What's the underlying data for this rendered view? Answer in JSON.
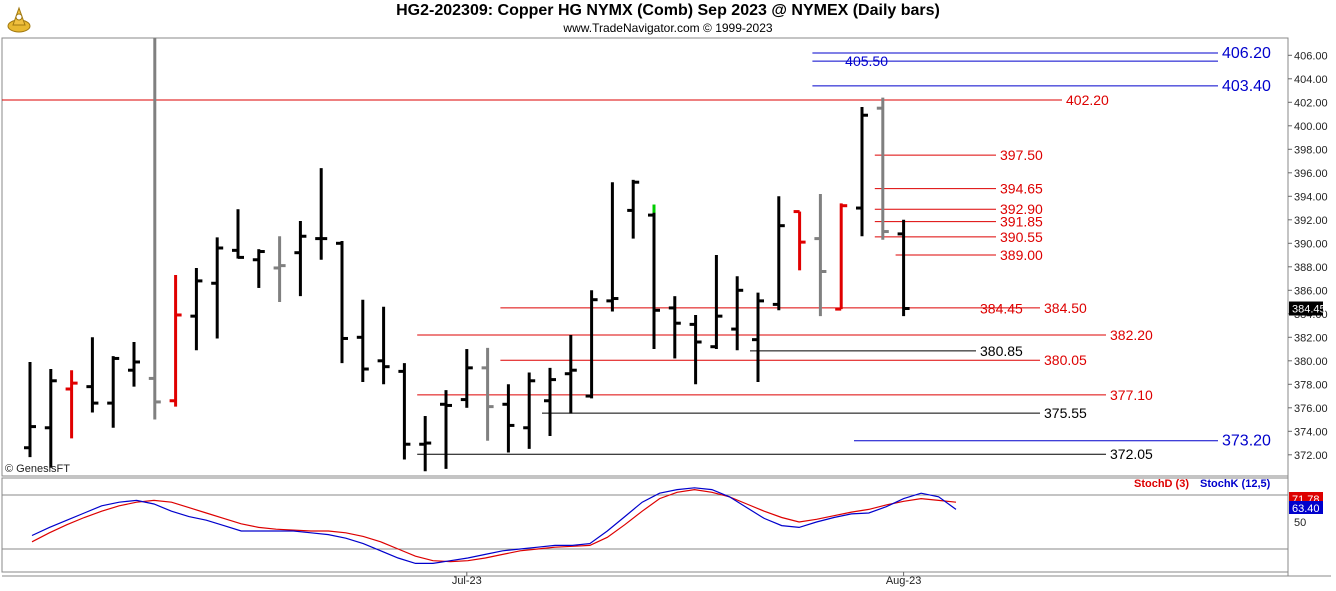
{
  "header": {
    "title": "HG2-202309:  Copper HG NYMX (Comb) Sep 2023 @ NYMEX  (Daily bars)",
    "subtitle": "www.TradeNavigator.com © 1999-2023"
  },
  "watermark": "© GenesisFT",
  "colors": {
    "up_bar": "#000000",
    "gray_bar": "#808080",
    "red_bar": "#e00000",
    "green_tick": "#00cc00",
    "red_level": "#dd0000",
    "blue_level": "#0000cc",
    "black_level": "#000000",
    "stoch_d": "#dd0000",
    "stoch_k": "#0000cc"
  },
  "chart_data": [
    {
      "type": "ohlc",
      "panel": "price",
      "y_range": [
        370.5,
        407.5
      ],
      "y_ticks": [
        "372.00",
        "374.00",
        "376.00",
        "378.00",
        "380.00",
        "382.00",
        "384.00",
        "386.00",
        "388.00",
        "390.00",
        "392.00",
        "394.00",
        "396.00",
        "398.00",
        "400.00",
        "402.00",
        "404.00",
        "406.00"
      ],
      "x_labels": [
        {
          "label": "Jul-23",
          "bar": 21
        },
        {
          "label": "Aug-23",
          "bar": 42
        }
      ],
      "last_price": "384.45",
      "bars": [
        {
          "o": 372.6,
          "h": 379.9,
          "l": 371.8,
          "c": 374.4,
          "color": "black"
        },
        {
          "o": 374.3,
          "h": 379.3,
          "l": 370.9,
          "c": 378.3,
          "color": "black"
        },
        {
          "o": 377.6,
          "h": 379.2,
          "l": 373.4,
          "c": 378.1,
          "color": "red"
        },
        {
          "o": 377.8,
          "h": 382.0,
          "l": 375.6,
          "c": 376.4,
          "color": "black"
        },
        {
          "o": 376.4,
          "h": 380.4,
          "l": 374.3,
          "c": 380.2,
          "color": "black"
        },
        {
          "o": 379.2,
          "h": 381.6,
          "l": 377.8,
          "c": 379.9,
          "color": "black"
        },
        {
          "o": 378.5,
          "h": 410.0,
          "l": 375.0,
          "c": 376.5,
          "color": "gray"
        },
        {
          "o": 376.6,
          "h": 387.3,
          "l": 376.1,
          "c": 383.9,
          "color": "red"
        },
        {
          "o": 383.8,
          "h": 387.9,
          "l": 380.9,
          "c": 386.8,
          "color": "black"
        },
        {
          "o": 386.6,
          "h": 390.5,
          "l": 381.9,
          "c": 389.6,
          "color": "black"
        },
        {
          "o": 389.4,
          "h": 392.9,
          "l": 388.7,
          "c": 388.8,
          "color": "black"
        },
        {
          "o": 388.6,
          "h": 389.5,
          "l": 386.2,
          "c": 389.3,
          "color": "black"
        },
        {
          "o": 387.9,
          "h": 390.6,
          "l": 385.0,
          "c": 388.1,
          "color": "gray"
        },
        {
          "o": 389.2,
          "h": 391.9,
          "l": 385.5,
          "c": 390.6,
          "color": "black"
        },
        {
          "o": 390.4,
          "h": 396.4,
          "l": 388.6,
          "c": 390.4,
          "color": "black"
        },
        {
          "o": 390.0,
          "h": 390.2,
          "l": 379.8,
          "c": 381.9,
          "color": "black"
        },
        {
          "o": 382.0,
          "h": 385.2,
          "l": 378.2,
          "c": 379.3,
          "color": "black"
        },
        {
          "o": 380.0,
          "h": 384.6,
          "l": 378.0,
          "c": 379.5,
          "color": "black"
        },
        {
          "o": 379.1,
          "h": 379.8,
          "l": 371.6,
          "c": 372.9,
          "color": "black"
        },
        {
          "o": 372.9,
          "h": 375.3,
          "l": 370.6,
          "c": 373.0,
          "color": "black"
        },
        {
          "o": 376.3,
          "h": 377.5,
          "l": 370.8,
          "c": 376.2,
          "color": "black"
        },
        {
          "o": 376.7,
          "h": 381.0,
          "l": 376.0,
          "c": 379.4,
          "color": "black"
        },
        {
          "o": 379.4,
          "h": 381.1,
          "l": 373.2,
          "c": 376.1,
          "color": "gray"
        },
        {
          "o": 376.3,
          "h": 378.0,
          "l": 372.2,
          "c": 374.5,
          "color": "black"
        },
        {
          "o": 374.3,
          "h": 379.0,
          "l": 372.5,
          "c": 378.3,
          "color": "black"
        },
        {
          "o": 376.6,
          "h": 379.4,
          "l": 373.6,
          "c": 378.4,
          "color": "black"
        },
        {
          "o": 378.9,
          "h": 382.2,
          "l": 375.5,
          "c": 379.2,
          "color": "black"
        },
        {
          "o": 377.0,
          "h": 386.0,
          "l": 376.8,
          "c": 385.2,
          "color": "black"
        },
        {
          "o": 385.1,
          "h": 395.2,
          "l": 384.2,
          "c": 385.3,
          "color": "black"
        },
        {
          "o": 392.8,
          "h": 395.4,
          "l": 390.4,
          "c": 395.2,
          "color": "black"
        },
        {
          "o": 392.4,
          "h": 393.2,
          "l": 381.0,
          "c": 384.3,
          "color": "black"
        },
        {
          "o": 384.5,
          "h": 385.5,
          "l": 380.2,
          "c": 383.2,
          "color": "black"
        },
        {
          "o": 383.1,
          "h": 383.9,
          "l": 378.0,
          "c": 381.6,
          "color": "black"
        },
        {
          "o": 381.2,
          "h": 389.0,
          "l": 381.0,
          "c": 383.8,
          "color": "black"
        },
        {
          "o": 382.7,
          "h": 387.2,
          "l": 380.9,
          "c": 386.0,
          "color": "black"
        },
        {
          "o": 381.8,
          "h": 385.8,
          "l": 378.2,
          "c": 385.1,
          "color": "black"
        },
        {
          "o": 384.8,
          "h": 394.0,
          "l": 384.3,
          "c": 391.5,
          "color": "black"
        },
        {
          "o": 392.7,
          "h": 392.7,
          "l": 387.7,
          "c": 390.1,
          "color": "red"
        },
        {
          "o": 390.4,
          "h": 394.2,
          "l": 383.8,
          "c": 387.6,
          "color": "gray"
        },
        {
          "o": 384.4,
          "h": 393.4,
          "l": 384.4,
          "c": 393.2,
          "color": "red"
        },
        {
          "o": 393.0,
          "h": 401.6,
          "l": 390.6,
          "c": 400.9,
          "color": "black"
        },
        {
          "o": 401.5,
          "h": 402.4,
          "l": 390.3,
          "c": 391.0,
          "color": "gray"
        },
        {
          "o": 390.8,
          "h": 392.0,
          "l": 383.8,
          "c": 384.45,
          "color": "black"
        }
      ],
      "green_tick_bar": 30,
      "levels": [
        {
          "label": "406.20",
          "value": 406.2,
          "color": "blue",
          "label_pos": "right",
          "x_from_bar": 38
        },
        {
          "label": "405.50",
          "value": 405.5,
          "color": "blue",
          "label_pos": "left",
          "x_from_bar": 38
        },
        {
          "label": "403.40",
          "value": 403.4,
          "color": "blue",
          "label_pos": "right",
          "x_from_bar": 38
        },
        {
          "label": "402.20",
          "value": 402.2,
          "color": "red",
          "label_pos": "right",
          "x_from_bar": -1
        },
        {
          "label": "397.50",
          "value": 397.5,
          "color": "red",
          "label_pos": "right",
          "x_from_bar": 41
        },
        {
          "label": "394.65",
          "value": 394.65,
          "color": "red",
          "label_pos": "right",
          "x_from_bar": 41
        },
        {
          "label": "392.90",
          "value": 392.9,
          "color": "red",
          "label_pos": "right",
          "x_from_bar": 41
        },
        {
          "label": "391.85",
          "value": 391.85,
          "color": "red",
          "label_pos": "right",
          "x_from_bar": 41
        },
        {
          "label": "390.55",
          "value": 390.55,
          "color": "red",
          "label_pos": "right",
          "x_from_bar": 41
        },
        {
          "label": "389.00",
          "value": 389.0,
          "color": "red",
          "label_pos": "right",
          "x_from_bar": 42
        },
        {
          "label": "384.50",
          "value": 384.5,
          "color": "red",
          "label_pos": "right",
          "x_from_bar": 23
        },
        {
          "label": "384.45",
          "value": 384.45,
          "color": "red",
          "label_pos": "inline",
          "x_from_bar": 35
        },
        {
          "label": "382.20",
          "value": 382.2,
          "color": "red",
          "label_pos": "right",
          "x_from_bar": 19
        },
        {
          "label": "380.85",
          "value": 380.85,
          "color": "black",
          "label_pos": "right",
          "x_from_bar": 35
        },
        {
          "label": "380.05",
          "value": 380.05,
          "color": "red",
          "label_pos": "right",
          "x_from_bar": 23
        },
        {
          "label": "377.10",
          "value": 377.1,
          "color": "red",
          "label_pos": "right",
          "x_from_bar": 19
        },
        {
          "label": "375.55",
          "value": 375.55,
          "color": "black",
          "label_pos": "right",
          "x_from_bar": 25
        },
        {
          "label": "373.20",
          "value": 373.2,
          "color": "blue",
          "label_pos": "right",
          "x_from_bar": 40
        },
        {
          "label": "372.05",
          "value": 372.05,
          "color": "black",
          "label_pos": "right",
          "x_from_bar": 19
        }
      ]
    },
    {
      "type": "line",
      "panel": "stochastic",
      "y_range": [
        0,
        100
      ],
      "y_ticks": [
        "50"
      ],
      "legend": [
        {
          "name": "StochD (3)",
          "color": "#dd0000"
        },
        {
          "name": "StochK (12,5)",
          "color": "#0000cc"
        }
      ],
      "series": [
        {
          "name": "StochD (3)",
          "last": "71.78",
          "values": [
            28,
            38,
            47,
            55,
            62,
            68,
            72,
            74,
            72,
            66,
            60,
            54,
            48,
            44,
            42,
            41,
            40,
            40,
            38,
            34,
            28,
            20,
            12,
            7,
            6,
            7,
            10,
            14,
            18,
            20,
            22,
            23,
            24,
            33,
            47,
            62,
            76,
            83,
            86,
            83,
            78,
            70,
            62,
            55,
            50,
            53,
            57,
            61,
            64,
            69,
            73,
            76,
            74,
            72
          ]
        },
        {
          "name": "StochK (12,5)",
          "last": "63.40",
          "values": [
            35,
            44,
            52,
            60,
            68,
            72,
            74,
            70,
            62,
            56,
            52,
            46,
            40,
            40,
            40,
            40,
            38,
            36,
            32,
            26,
            18,
            10,
            4,
            4,
            7,
            10,
            14,
            18,
            20,
            22,
            24,
            24,
            26,
            40,
            56,
            72,
            82,
            86,
            88,
            86,
            78,
            66,
            54,
            46,
            44,
            50,
            55,
            59,
            60,
            67,
            76,
            82,
            78,
            64
          ]
        }
      ]
    }
  ]
}
